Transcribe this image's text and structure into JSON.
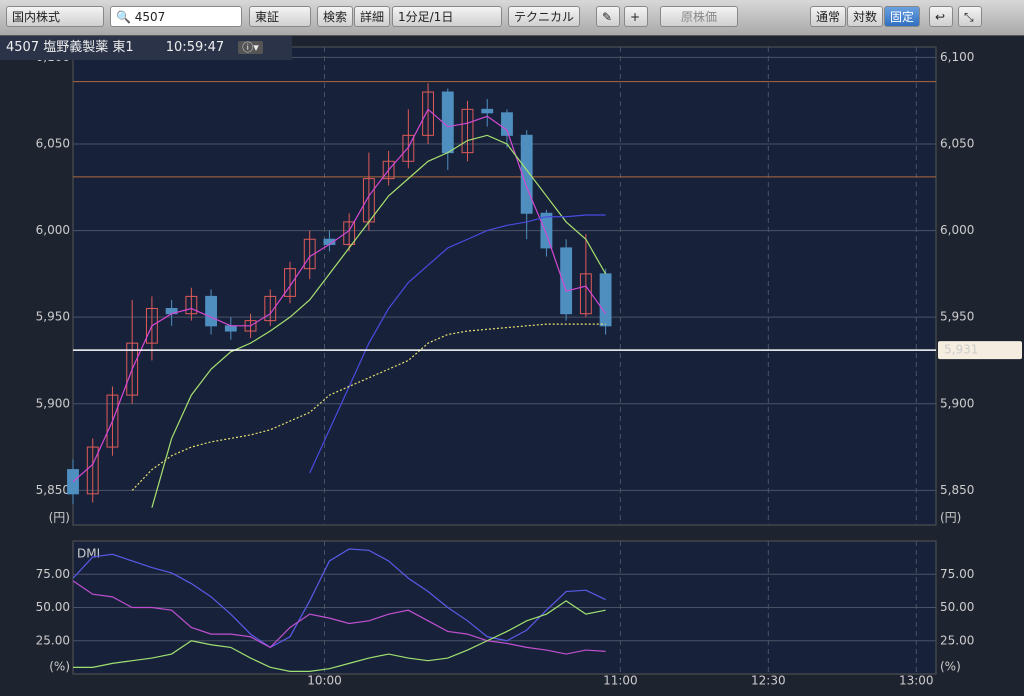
{
  "toolbar": {
    "market": "国内株式",
    "search": "4507",
    "exchange": "東証",
    "find": "検索",
    "detail": "詳細",
    "interval": "1分足/1日",
    "technical": "テクニカル",
    "base": "原株価",
    "normal": "通常",
    "log": "対数",
    "fixed": "固定"
  },
  "header": {
    "symbol": "4507 塩野義製薬 東1",
    "time": "10:59:47"
  },
  "chart_data": [
    {
      "type": "candlestick",
      "unit": "(円)",
      "x": [
        9,
        13,
        17,
        21,
        25,
        29,
        33,
        37,
        41,
        45,
        49,
        53,
        57,
        61,
        65,
        69,
        73,
        77,
        81,
        85,
        89,
        93,
        97,
        101,
        105,
        109,
        113,
        117
      ],
      "open": [
        5862,
        5848,
        5875,
        5905,
        5935,
        5955,
        5952,
        5962,
        5945,
        5942,
        5948,
        5962,
        5978,
        5995,
        5992,
        6005,
        6030,
        6040,
        6055,
        6080,
        6045,
        6070,
        6068,
        6055,
        6010,
        5990,
        5952,
        5975
      ],
      "high": [
        5868,
        5880,
        5910,
        5960,
        5962,
        5960,
        5967,
        5966,
        5950,
        5952,
        5966,
        5982,
        6000,
        6000,
        6010,
        6045,
        6046,
        6070,
        6085,
        6082,
        6075,
        6076,
        6070,
        6058,
        6012,
        5995,
        5998,
        5978
      ],
      "low": [
        5842,
        5843,
        5870,
        5900,
        5925,
        5945,
        5948,
        5940,
        5937,
        5938,
        5945,
        5958,
        5972,
        5988,
        5988,
        6000,
        6026,
        6036,
        6050,
        6035,
        6040,
        6060,
        6048,
        5995,
        5985,
        5948,
        5950,
        5940
      ],
      "close": [
        5848,
        5875,
        5905,
        5935,
        5955,
        5952,
        5962,
        5945,
        5942,
        5948,
        5962,
        5978,
        5995,
        5992,
        6005,
        6030,
        6040,
        6055,
        6080,
        6045,
        6070,
        6068,
        6055,
        6010,
        5990,
        5952,
        5975,
        5945
      ],
      "up_color": "#e05a5a",
      "down_color": "#4f8fc0",
      "series": [
        {
          "color": "#d548d5",
          "dotted": false,
          "values": [
            5855,
            5865,
            5890,
            5920,
            5945,
            5952,
            5955,
            5950,
            5945,
            5945,
            5952,
            5968,
            5985,
            5992,
            6000,
            6020,
            6035,
            6048,
            6070,
            6060,
            6062,
            6066,
            6058,
            6025,
            5998,
            5965,
            5968,
            5952
          ]
        },
        {
          "color": "#a8e070",
          "dotted": false,
          "values": [
            null,
            null,
            null,
            null,
            5840,
            5880,
            5905,
            5920,
            5930,
            5935,
            5942,
            5950,
            5960,
            5975,
            5990,
            6005,
            6020,
            6030,
            6040,
            6045,
            6052,
            6055,
            6050,
            6035,
            6020,
            6005,
            5995,
            5975
          ]
        },
        {
          "color": "#4a4ae0",
          "dotted": false,
          "values": [
            null,
            null,
            null,
            null,
            null,
            null,
            null,
            null,
            null,
            null,
            null,
            null,
            5860,
            5885,
            5910,
            5935,
            5955,
            5970,
            5980,
            5990,
            5995,
            6000,
            6003,
            6005,
            6008,
            6008,
            6009,
            6009
          ]
        },
        {
          "color": "#e8e070",
          "dotted": true,
          "values": [
            null,
            null,
            null,
            5850,
            5862,
            5870,
            5875,
            5878,
            5880,
            5882,
            5885,
            5890,
            5895,
            5905,
            5910,
            5915,
            5920,
            5925,
            5935,
            5940,
            5942,
            5943,
            5944,
            5945,
            5946,
            5946,
            5946,
            5946
          ]
        }
      ],
      "reference_lines": [
        6086,
        6031
      ],
      "last_price": {
        "value": 5931,
        "label": "5,931"
      },
      "xlim": [
        9,
        184
      ],
      "xticks": [
        60,
        120,
        150,
        180
      ],
      "ylim": [
        5830,
        6106
      ],
      "yticks": [
        {
          "value": 5850,
          "label": "5,850"
        },
        {
          "value": 5900,
          "label": "5,900"
        },
        {
          "value": 5950,
          "label": "5,950"
        },
        {
          "value": 6000,
          "label": "6,000"
        },
        {
          "value": 6050,
          "label": "6,050"
        },
        {
          "value": 6100,
          "label": "6,100"
        }
      ],
      "grid": true
    },
    {
      "type": "line",
      "title": "DMI",
      "unit": "(%)",
      "x": [
        9,
        13,
        17,
        21,
        25,
        29,
        33,
        37,
        41,
        45,
        49,
        53,
        57,
        61,
        65,
        69,
        73,
        77,
        81,
        85,
        89,
        93,
        97,
        101,
        105,
        109,
        113,
        117
      ],
      "series": [
        {
          "color": "#5a5ae8",
          "values": [
            72,
            88,
            90,
            85,
            80,
            76,
            68,
            58,
            45,
            30,
            20,
            28,
            55,
            85,
            94,
            93,
            85,
            72,
            62,
            50,
            40,
            28,
            25,
            33,
            48,
            62,
            63,
            56
          ]
        },
        {
          "color": "#c050d0",
          "values": [
            70,
            60,
            58,
            50,
            50,
            48,
            35,
            30,
            30,
            28,
            20,
            35,
            45,
            42,
            38,
            40,
            45,
            48,
            40,
            32,
            30,
            25,
            23,
            20,
            18,
            15,
            18,
            17
          ]
        },
        {
          "color": "#a0e070",
          "values": [
            5,
            5,
            8,
            10,
            12,
            15,
            25,
            22,
            20,
            12,
            5,
            2,
            2,
            4,
            8,
            12,
            15,
            12,
            10,
            12,
            18,
            25,
            32,
            40,
            45,
            55,
            45,
            48
          ]
        }
      ],
      "xlim": [
        9,
        184
      ],
      "xticks": [
        {
          "value": 60,
          "label": "10:00"
        },
        {
          "value": 120,
          "label": "11:00"
        },
        {
          "value": 150,
          "label": "12:30"
        },
        {
          "value": 180,
          "label": "13:00"
        }
      ],
      "ylim": [
        0,
        100
      ],
      "yticks": [
        {
          "value": 25,
          "label": "25.00"
        },
        {
          "value": 50,
          "label": "50.00"
        },
        {
          "value": 75,
          "label": "75.00"
        }
      ],
      "grid": true
    }
  ]
}
